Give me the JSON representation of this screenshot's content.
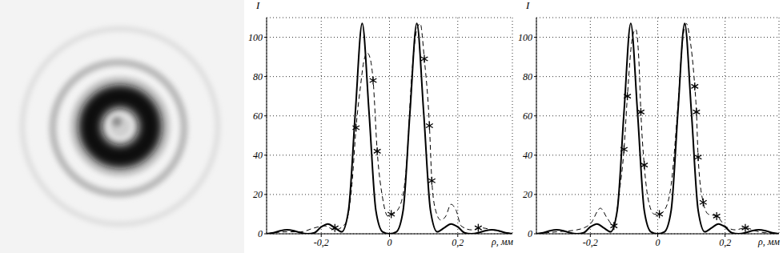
{
  "chart_data": [
    {
      "type": "line",
      "x_label": "ρ, мм",
      "y_label": "I",
      "grid": true,
      "xlim": [
        -0.36,
        0.36
      ],
      "ylim": [
        0,
        110
      ],
      "xticks": [
        {
          "value": -0.2,
          "label": "-0,2"
        },
        0,
        {
          "value": 0.2,
          "label": "0,2"
        }
      ],
      "yticks": [
        0,
        20,
        40,
        60,
        80,
        100
      ],
      "series": [
        {
          "color": "#000000",
          "line_style": "solid",
          "x": [
            -0.36,
            -0.34,
            -0.32,
            -0.3,
            -0.28,
            -0.26,
            -0.24,
            -0.22,
            -0.2,
            -0.18,
            -0.16,
            -0.14,
            -0.12,
            -0.1,
            -0.08,
            -0.06,
            -0.04,
            -0.02,
            0,
            0.02,
            0.04,
            0.06,
            0.08,
            0.1,
            0.12,
            0.14,
            0.16,
            0.18,
            0.2,
            0.22,
            0.24,
            0.26,
            0.28,
            0.3,
            0.32,
            0.34,
            0.36
          ],
          "values": [
            0,
            0.5,
            1.5,
            2,
            1.5,
            0.5,
            0,
            0.5,
            3.5,
            5,
            3,
            1,
            12,
            62,
            107,
            62,
            12,
            1,
            0,
            1,
            12,
            62,
            107,
            62,
            12,
            1,
            3,
            5,
            3.5,
            0.5,
            0,
            0.5,
            1.5,
            2,
            1.5,
            0.5,
            0
          ]
        },
        {
          "color": "#000000",
          "line_style": "dashed",
          "x": [
            -0.36,
            -0.3,
            -0.26,
            -0.22,
            -0.19,
            -0.16,
            -0.13,
            -0.11,
            -0.098,
            -0.085,
            -0.075,
            -0.065,
            -0.055,
            -0.048,
            -0.036,
            -0.02,
            -0.005,
            0.01,
            0.03,
            0.05,
            0.065,
            0.08,
            0.09,
            0.102,
            0.117,
            0.124,
            0.135,
            0.15,
            0.165,
            0.18,
            0.195,
            0.21,
            0.24,
            0.27,
            0.3,
            0.33,
            0.36
          ],
          "values": [
            0,
            1,
            1,
            3,
            4,
            2,
            5,
            25,
            54,
            75,
            88,
            92,
            88,
            78,
            42,
            18,
            9,
            10,
            14,
            35,
            80,
            104,
            107,
            89,
            55,
            27,
            12,
            7,
            9,
            15,
            12,
            4,
            2,
            3,
            2,
            1,
            0
          ]
        },
        {
          "type": "scatter",
          "color": "#000000",
          "marker": "asterisk",
          "x": [
            -0.16,
            -0.098,
            -0.048,
            -0.036,
            0.005,
            0.102,
            0.117,
            0.124,
            0.26
          ],
          "values": [
            3,
            54,
            78,
            42,
            10,
            89,
            55,
            27,
            3
          ]
        }
      ]
    },
    {
      "type": "line",
      "x_label": "ρ, мм",
      "y_label": "I",
      "grid": true,
      "xlim": [
        -0.36,
        0.36
      ],
      "ylim": [
        0,
        110
      ],
      "xticks": [
        {
          "value": -0.2,
          "label": "-0,2"
        },
        0,
        {
          "value": 0.2,
          "label": "0,2"
        }
      ],
      "yticks": [
        0,
        20,
        40,
        60,
        80,
        100
      ],
      "series": [
        {
          "color": "#000000",
          "line_style": "solid",
          "x": [
            -0.36,
            -0.34,
            -0.32,
            -0.3,
            -0.28,
            -0.26,
            -0.24,
            -0.22,
            -0.2,
            -0.18,
            -0.16,
            -0.14,
            -0.12,
            -0.1,
            -0.08,
            -0.06,
            -0.04,
            -0.02,
            0,
            0.02,
            0.04,
            0.06,
            0.08,
            0.1,
            0.12,
            0.14,
            0.16,
            0.18,
            0.2,
            0.22,
            0.24,
            0.26,
            0.28,
            0.3,
            0.32,
            0.34,
            0.36
          ],
          "values": [
            0,
            0.5,
            1.5,
            2,
            1.5,
            0.5,
            0,
            0.5,
            3.5,
            5,
            3,
            1,
            12,
            62,
            107,
            62,
            12,
            1,
            0,
            1,
            12,
            62,
            107,
            62,
            12,
            1,
            3,
            5,
            3.5,
            0.5,
            0,
            0.5,
            1.5,
            2,
            1.5,
            0.5,
            0
          ]
        },
        {
          "color": "#000000",
          "line_style": "dashed",
          "x": [
            -0.36,
            -0.3,
            -0.24,
            -0.2,
            -0.17,
            -0.15,
            -0.13,
            -0.115,
            -0.1,
            -0.09,
            -0.075,
            -0.065,
            -0.055,
            -0.05,
            -0.04,
            -0.025,
            -0.01,
            0.005,
            0.02,
            0.04,
            0.06,
            0.075,
            0.085,
            0.095,
            0.11,
            0.115,
            0.12,
            0.135,
            0.15,
            0.175,
            0.2,
            0.23,
            0.26,
            0.3,
            0.36
          ],
          "values": [
            0,
            1,
            2,
            5,
            13,
            8,
            4,
            20,
            43,
            70,
            100,
            104,
            85,
            62,
            35,
            15,
            10,
            10,
            12,
            25,
            65,
            100,
            107,
            100,
            75,
            62,
            39,
            16,
            10,
            9,
            4,
            2,
            3,
            1,
            0
          ]
        },
        {
          "type": "scatter",
          "color": "#000000",
          "marker": "asterisk",
          "x": [
            -0.13,
            -0.1,
            -0.09,
            -0.05,
            -0.04,
            0.005,
            0.11,
            0.115,
            0.12,
            0.135,
            0.175,
            0.26
          ],
          "values": [
            4,
            43,
            70,
            62,
            35,
            10,
            75,
            62,
            39,
            16,
            9,
            3
          ]
        }
      ]
    }
  ]
}
